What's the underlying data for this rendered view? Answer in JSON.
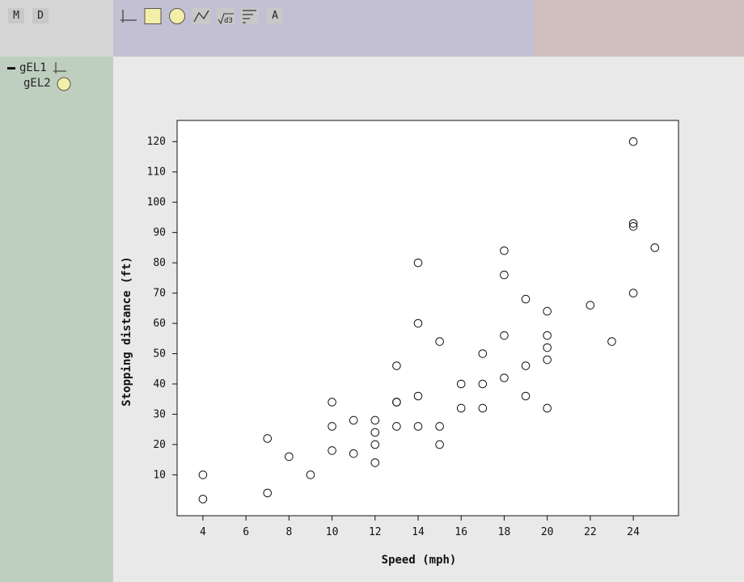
{
  "app": {
    "mode_buttons": [
      {
        "label": "M"
      },
      {
        "label": "D"
      }
    ],
    "toolbar": {
      "tools": [
        {
          "icon": "axes-icon"
        },
        {
          "icon": "rectangle-icon"
        },
        {
          "icon": "circle-icon"
        },
        {
          "icon": "line-icon"
        },
        {
          "icon": "d3-formula-icon"
        },
        {
          "icon": "legend-lines-icon"
        },
        {
          "icon": "text-icon",
          "label": "A"
        }
      ]
    },
    "colors": {
      "top_left": "#d6d6d6",
      "toolbar": "#c2c0d2",
      "top_right": "#d1bfbf",
      "sidebar": "#bfcfbf",
      "canvas": "#e9e9e9",
      "shape_fill": "#f3efa8"
    }
  },
  "tree": {
    "items": [
      {
        "label": "gEL1",
        "icon": "axes-icon",
        "collapse_marker": "minus"
      },
      {
        "label": "gEL2",
        "icon": "circle-icon"
      }
    ]
  },
  "chart_data": {
    "type": "scatter",
    "xlabel": "Speed (mph)",
    "ylabel": "Stopping distance (ft)",
    "xlim": [
      2.8,
      26.1
    ],
    "ylim": [
      -3.5,
      127
    ],
    "xticks": [
      4,
      6,
      8,
      10,
      12,
      14,
      16,
      18,
      20,
      22,
      24
    ],
    "yticks": [
      10,
      20,
      30,
      40,
      50,
      60,
      70,
      80,
      90,
      100,
      110,
      120
    ],
    "grid": false,
    "marker": "open-circle",
    "points": [
      [
        4,
        2
      ],
      [
        4,
        10
      ],
      [
        7,
        4
      ],
      [
        7,
        22
      ],
      [
        8,
        16
      ],
      [
        9,
        10
      ],
      [
        10,
        18
      ],
      [
        10,
        26
      ],
      [
        10,
        34
      ],
      [
        11,
        17
      ],
      [
        11,
        28
      ],
      [
        12,
        14
      ],
      [
        12,
        20
      ],
      [
        12,
        24
      ],
      [
        12,
        28
      ],
      [
        13,
        26
      ],
      [
        13,
        34
      ],
      [
        13,
        34
      ],
      [
        13,
        46
      ],
      [
        14,
        26
      ],
      [
        14,
        36
      ],
      [
        14,
        60
      ],
      [
        14,
        80
      ],
      [
        15,
        20
      ],
      [
        15,
        26
      ],
      [
        15,
        54
      ],
      [
        16,
        32
      ],
      [
        16,
        40
      ],
      [
        17,
        32
      ],
      [
        17,
        40
      ],
      [
        17,
        50
      ],
      [
        18,
        42
      ],
      [
        18,
        56
      ],
      [
        18,
        76
      ],
      [
        18,
        84
      ],
      [
        19,
        36
      ],
      [
        19,
        46
      ],
      [
        19,
        68
      ],
      [
        20,
        32
      ],
      [
        20,
        48
      ],
      [
        20,
        52
      ],
      [
        20,
        56
      ],
      [
        20,
        64
      ],
      [
        22,
        66
      ],
      [
        23,
        54
      ],
      [
        24,
        70
      ],
      [
        24,
        92
      ],
      [
        24,
        93
      ],
      [
        24,
        120
      ],
      [
        25,
        85
      ]
    ]
  }
}
